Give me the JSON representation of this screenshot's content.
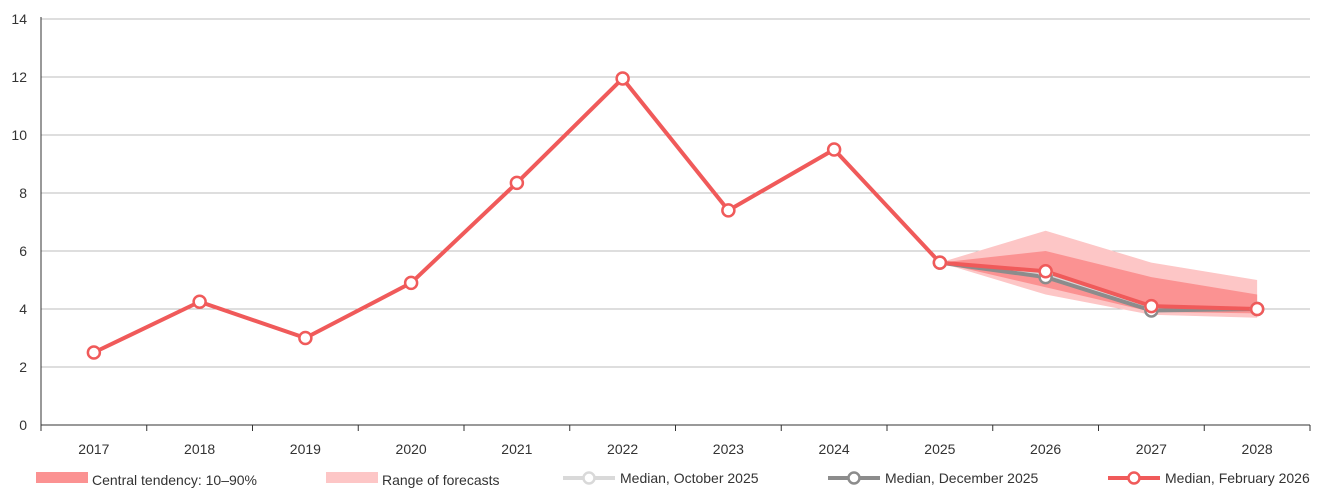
{
  "chart_data": {
    "type": "line",
    "x": [
      "2017",
      "2018",
      "2019",
      "2020",
      "2021",
      "2022",
      "2023",
      "2024",
      "2025",
      "2026",
      "2027",
      "2028"
    ],
    "ylim": [
      0,
      14
    ],
    "y_ticks": [
      "0",
      "2",
      "4",
      "6",
      "8",
      "10",
      "12",
      "14"
    ],
    "grid": true,
    "legend_position": "bottom",
    "series": [
      {
        "name": "Median, February 2026",
        "color": "#F05A5A",
        "values": [
          2.5,
          4.25,
          3.0,
          4.9,
          8.35,
          11.95,
          7.4,
          9.5,
          5.6,
          5.3,
          4.1,
          4.0
        ]
      },
      {
        "name": "Median, December 2025",
        "color": "#8C8C8C",
        "x": [
          "2025",
          "2026",
          "2027",
          "2028"
        ],
        "values": [
          5.6,
          5.1,
          3.95,
          4.0
        ]
      },
      {
        "name": "Median, October 2025",
        "color": "#D9D9D9",
        "x": [
          "2025",
          "2026",
          "2027",
          "2028"
        ],
        "values": [
          5.6,
          5.2,
          4.0,
          4.0
        ]
      }
    ],
    "bands": [
      {
        "name": "Range of forecasts",
        "color": "#FDC6C6",
        "x": [
          "2025",
          "2026",
          "2027",
          "2028"
        ],
        "low": [
          5.6,
          4.5,
          3.8,
          3.7
        ],
        "high": [
          5.6,
          6.7,
          5.6,
          5.0
        ]
      },
      {
        "name": "Central tendency: 10–90%",
        "color": "#FB9292",
        "x": [
          "2025",
          "2026",
          "2027",
          "2028"
        ],
        "low": [
          5.6,
          4.75,
          3.9,
          3.85
        ],
        "high": [
          5.6,
          6.0,
          5.1,
          4.5
        ]
      }
    ]
  },
  "legend": [
    {
      "key": "central_tendency",
      "label": "Central tendency: 10–90%",
      "kind": "band",
      "color": "#FB9292"
    },
    {
      "key": "range",
      "label": "Range of forecasts",
      "kind": "band",
      "color": "#FDC6C6"
    },
    {
      "key": "median_oct",
      "label": "Median, October 2025",
      "kind": "line",
      "color": "#D9D9D9"
    },
    {
      "key": "median_dec",
      "label": "Median, December 2025",
      "kind": "line",
      "color": "#8C8C8C"
    },
    {
      "key": "median_feb",
      "label": "Median, February 2026",
      "kind": "line",
      "color": "#F05A5A"
    }
  ]
}
